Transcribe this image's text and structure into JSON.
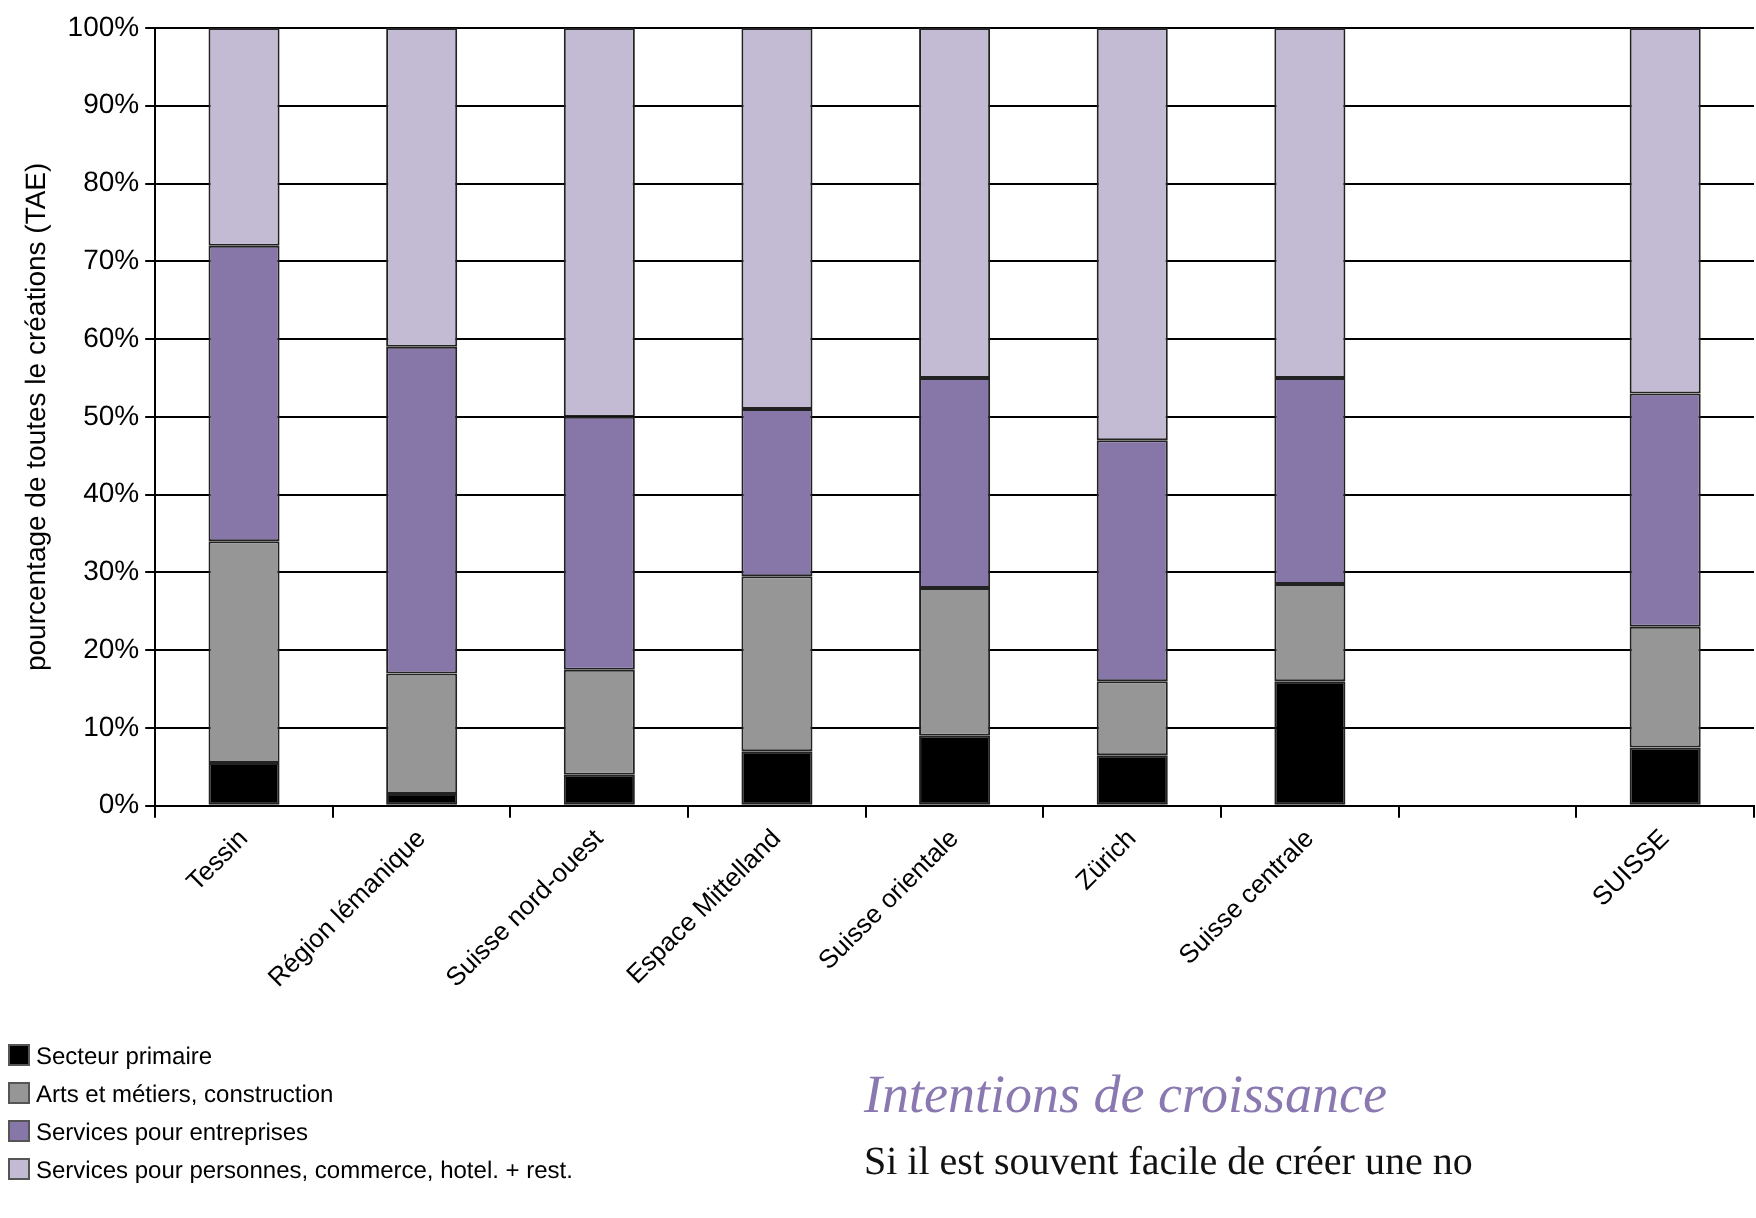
{
  "chart_data": {
    "type": "bar",
    "stacked": true,
    "ylabel": "pourcentage de toutes le créations (TAE)",
    "categories": [
      "Tessin",
      "Région lémanique",
      "Suisse nord-ouest",
      "Espace Mittelland",
      "Suisse orientale",
      "Zürich",
      "Suisse centrale",
      null,
      "SUISSE"
    ],
    "series": [
      {
        "name": "Secteur primaire",
        "color": "#000000",
        "values": [
          5.5,
          1.5,
          4,
          7,
          9,
          6.5,
          16,
          null,
          7.5
        ]
      },
      {
        "name": "Arts et métiers, construction",
        "color": "#969696",
        "values": [
          28.5,
          15.5,
          13.5,
          22.5,
          19,
          9.5,
          12.5,
          null,
          15.5
        ]
      },
      {
        "name": "Services pour entreprises",
        "color": "#8776a8",
        "values": [
          38,
          42,
          32.5,
          21.5,
          27,
          31,
          26.5,
          null,
          30
        ]
      },
      {
        "name": "Services pour personnes, commerce, hotel. + rest.",
        "color": "#c3bbd4",
        "values": [
          28,
          41,
          50,
          49,
          45,
          53,
          45,
          null,
          47
        ]
      }
    ],
    "ylim": [
      0,
      100
    ],
    "yticks": [
      {
        "value": 0,
        "label": "0%"
      },
      {
        "value": 10,
        "label": "10%"
      },
      {
        "value": 20,
        "label": "20%"
      },
      {
        "value": 30,
        "label": "30%"
      },
      {
        "value": 40,
        "label": "40%"
      },
      {
        "value": 50,
        "label": "50%"
      },
      {
        "value": 60,
        "label": "60%"
      },
      {
        "value": 70,
        "label": "70%"
      },
      {
        "value": 80,
        "label": "80%"
      },
      {
        "value": 90,
        "label": "90%"
      },
      {
        "value": 100,
        "label": "100%"
      }
    ],
    "grid": "y",
    "legend": "bottom left",
    "annotations": [
      "Intentions de croissance",
      "Si il est souvent facile de créer une no"
    ]
  }
}
